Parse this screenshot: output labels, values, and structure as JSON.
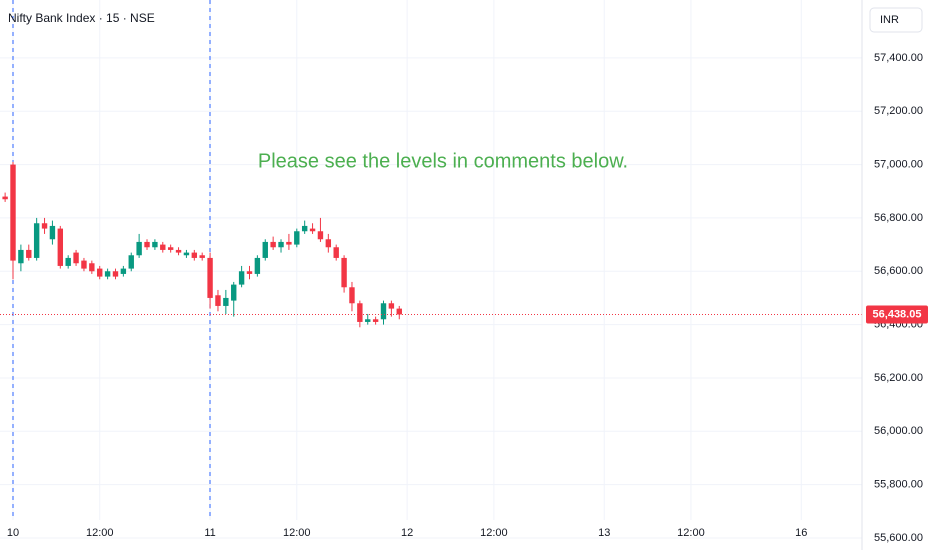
{
  "chart_data": {
    "type": "candlestick",
    "title": "Nifty Bank Index · 15 · NSE",
    "currency": "INR",
    "annotation": "Please see the levels in comments below.",
    "up_color": "#089981",
    "down_color": "#f23645",
    "annotation_color": "#4caf50",
    "grid": true,
    "x": [
      -1,
      0,
      1,
      2,
      3,
      4,
      5,
      6,
      7,
      8,
      9,
      10,
      11,
      12,
      13,
      14,
      15,
      16,
      17,
      18,
      19,
      20,
      21,
      22,
      23,
      24,
      25,
      26,
      27,
      28,
      29,
      30,
      31,
      32,
      33,
      34,
      35,
      36,
      37,
      38,
      39,
      40,
      41,
      42,
      43,
      44,
      45,
      46,
      47,
      48,
      49
    ],
    "open": [
      56880,
      57000,
      56630,
      56680,
      56650,
      56780,
      56720,
      56760,
      56620,
      56670,
      56640,
      56630,
      56610,
      56580,
      56600,
      56590,
      56610,
      56660,
      56710,
      56690,
      56700,
      56690,
      56680,
      56660,
      56670,
      56660,
      56650,
      56510,
      56470,
      56490,
      56550,
      56600,
      56590,
      56650,
      56710,
      56690,
      56710,
      56700,
      56750,
      56760,
      56750,
      56720,
      56690,
      56650,
      56540,
      56480,
      56410,
      56420,
      56420,
      56480,
      56460
    ],
    "high": [
      56895,
      57010,
      56700,
      56700,
      56800,
      56800,
      56790,
      56770,
      56660,
      56680,
      56650,
      56640,
      56620,
      56610,
      56610,
      56620,
      56670,
      56740,
      56720,
      56720,
      56710,
      56700,
      56690,
      56680,
      56680,
      56670,
      56670,
      56530,
      56530,
      56560,
      56620,
      56620,
      56660,
      56720,
      56730,
      56720,
      56740,
      56760,
      56790,
      56780,
      56800,
      56740,
      56700,
      56660,
      56560,
      56490,
      56440,
      56430,
      56490,
      56490,
      56470
    ],
    "low": [
      56860,
      56570,
      56600,
      56640,
      56640,
      56740,
      56700,
      56610,
      56610,
      56620,
      56600,
      56590,
      56570,
      56570,
      56570,
      56580,
      56600,
      56650,
      56680,
      56680,
      56670,
      56670,
      56660,
      56650,
      56640,
      56640,
      56460,
      56450,
      56440,
      56430,
      56540,
      56570,
      56580,
      56640,
      56680,
      56670,
      56680,
      56690,
      56740,
      56740,
      56710,
      56670,
      56640,
      56520,
      56450,
      56390,
      56400,
      56400,
      56400,
      56430,
      56420
    ],
    "close": [
      56870,
      56640,
      56680,
      56650,
      56780,
      56760,
      56770,
      56620,
      56650,
      56630,
      56610,
      56600,
      56580,
      56600,
      56580,
      56610,
      56660,
      56710,
      56690,
      56710,
      56680,
      56680,
      56670,
      56670,
      56650,
      56650,
      56500,
      56470,
      56500,
      56550,
      56600,
      56590,
      56650,
      56710,
      56690,
      56710,
      56700,
      56750,
      56770,
      56750,
      56720,
      56690,
      56650,
      56540,
      56480,
      56410,
      56420,
      56410,
      56480,
      56460,
      56438.05
    ],
    "xlim": [
      -1.65,
      107.7
    ],
    "xticks": [
      {
        "value": 0,
        "label": "10"
      },
      {
        "value": 11,
        "label": "12:00"
      },
      {
        "value": 25,
        "label": "11"
      },
      {
        "value": 36,
        "label": "12:00"
      },
      {
        "value": 50,
        "label": "12"
      },
      {
        "value": 61,
        "label": "12:00"
      },
      {
        "value": 75,
        "label": "13"
      },
      {
        "value": 86,
        "label": "12:00"
      },
      {
        "value": 100,
        "label": "16"
      }
    ],
    "ylim": [
      55555,
      57617
    ],
    "yticks": [
      {
        "value": 55600,
        "label": "55,600.00"
      },
      {
        "value": 55800,
        "label": "55,800.00"
      },
      {
        "value": 56000,
        "label": "56,000.00"
      },
      {
        "value": 56200,
        "label": "56,200.00"
      },
      {
        "value": 56400,
        "label": "56,400.00"
      },
      {
        "value": 56600,
        "label": "56,600.00"
      },
      {
        "value": 56800,
        "label": "56,800.00"
      },
      {
        "value": 57000,
        "label": "57,000.00"
      },
      {
        "value": 57200,
        "label": "57,200.00"
      },
      {
        "value": 57400,
        "label": "57,400.00"
      }
    ],
    "last_price": {
      "value": 56438.05,
      "label": "56,438.05"
    }
  }
}
